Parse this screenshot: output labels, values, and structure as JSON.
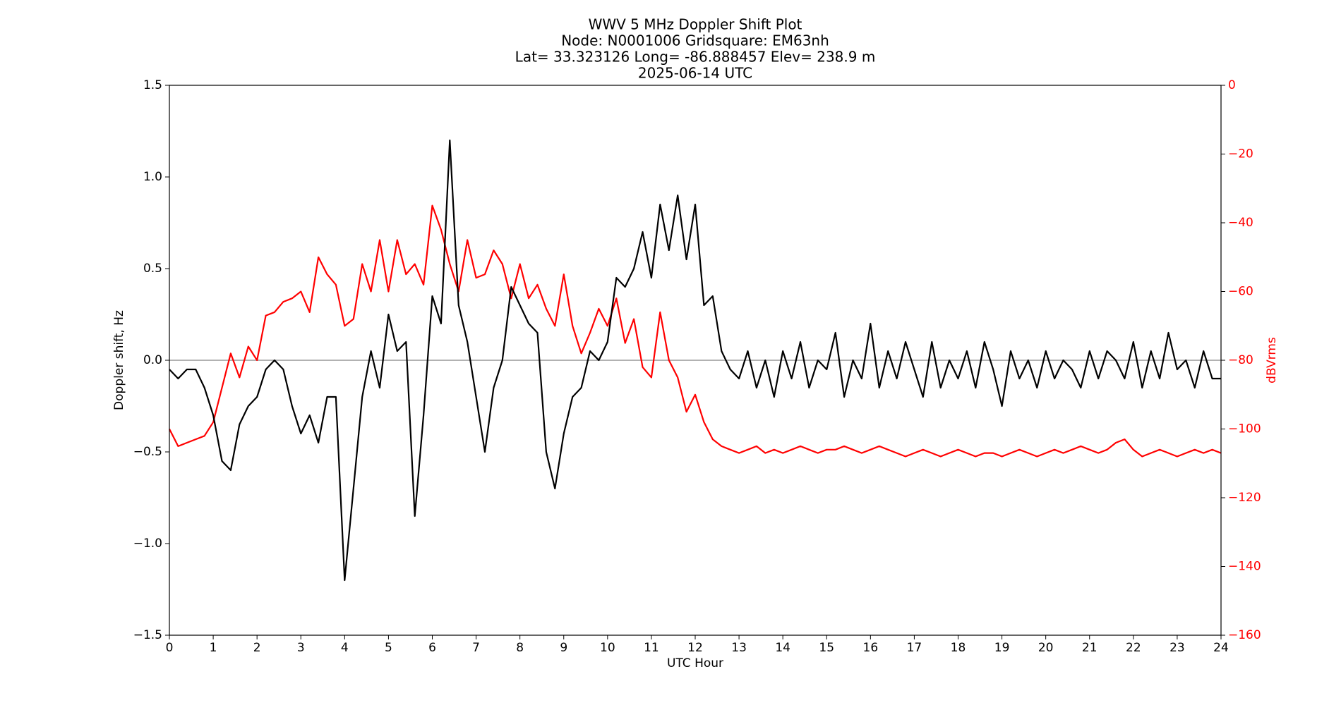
{
  "chart_data": {
    "type": "line",
    "title_lines": [
      "WWV 5 MHz Doppler Shift Plot",
      "Node:  N0001006     Gridsquare:  EM63nh",
      "Lat= 33.323126    Long= -86.888457    Elev= 238.9 m",
      "2025-06-14  UTC"
    ],
    "xlabel": "UTC Hour",
    "ylabel": "Doppler shift, Hz",
    "y2label": "dBVrms",
    "x": [
      0,
      0.2,
      0.4,
      0.6,
      0.8,
      1,
      1.2,
      1.4,
      1.6,
      1.8,
      2,
      2.2,
      2.4,
      2.6,
      2.8,
      3,
      3.2,
      3.4,
      3.6,
      3.8,
      4,
      4.2,
      4.4,
      4.6,
      4.8,
      5,
      5.2,
      5.4,
      5.6,
      5.8,
      6,
      6.2,
      6.4,
      6.6,
      6.8,
      7,
      7.2,
      7.4,
      7.6,
      7.8,
      8,
      8.2,
      8.4,
      8.6,
      8.8,
      9,
      9.2,
      9.4,
      9.6,
      9.8,
      10,
      10.2,
      10.4,
      10.6,
      10.8,
      11,
      11.2,
      11.4,
      11.6,
      11.8,
      12,
      12.2,
      12.4,
      12.6,
      12.8,
      13,
      13.2,
      13.4,
      13.6,
      13.8,
      14,
      14.2,
      14.4,
      14.6,
      14.8,
      15,
      15.2,
      15.4,
      15.6,
      15.8,
      16,
      16.2,
      16.4,
      16.6,
      16.8,
      17,
      17.2,
      17.4,
      17.6,
      17.8,
      18,
      18.2,
      18.4,
      18.6,
      18.8,
      19,
      19.2,
      19.4,
      19.6,
      19.8,
      20,
      20.2,
      20.4,
      20.6,
      20.8,
      21,
      21.2,
      21.4,
      21.6,
      21.8,
      22,
      22.2,
      22.4,
      22.6,
      22.8,
      23,
      23.2,
      23.4,
      23.6,
      23.8,
      24
    ],
    "series": [
      {
        "name": "Doppler shift",
        "color": "#000000",
        "axis": "y",
        "values": [
          -0.05,
          -0.1,
          -0.05,
          -0.05,
          -0.15,
          -0.3,
          -0.55,
          -0.6,
          -0.35,
          -0.25,
          -0.2,
          -0.05,
          0.0,
          -0.05,
          -0.25,
          -0.4,
          -0.3,
          -0.45,
          -0.2,
          -0.2,
          -1.2,
          -0.7,
          -0.2,
          0.05,
          -0.15,
          0.25,
          0.05,
          0.1,
          -0.85,
          -0.3,
          0.35,
          0.2,
          1.2,
          0.3,
          0.1,
          -0.2,
          -0.5,
          -0.15,
          0.0,
          0.4,
          0.3,
          0.2,
          0.15,
          -0.5,
          -0.7,
          -0.4,
          -0.2,
          -0.15,
          0.05,
          0.0,
          0.1,
          0.45,
          0.4,
          0.5,
          0.7,
          0.45,
          0.85,
          0.6,
          0.9,
          0.55,
          0.85,
          0.3,
          0.35,
          0.05,
          -0.05,
          -0.1,
          0.05,
          -0.15,
          0.0,
          -0.2,
          0.05,
          -0.1,
          0.1,
          -0.15,
          0.0,
          -0.05,
          0.15,
          -0.2,
          0.0,
          -0.1,
          0.2,
          -0.15,
          0.05,
          -0.1,
          0.1,
          -0.05,
          -0.2,
          0.1,
          -0.15,
          0.0,
          -0.1,
          0.05,
          -0.15,
          0.1,
          -0.05,
          -0.25,
          0.05,
          -0.1,
          0.0,
          -0.15,
          0.05,
          -0.1,
          0.0,
          -0.05,
          -0.15,
          0.05,
          -0.1,
          0.05,
          0.0,
          -0.1,
          0.1,
          -0.15,
          0.05,
          -0.1,
          0.15,
          -0.05,
          0.0,
          -0.15,
          0.05,
          -0.1,
          -0.1
        ]
      },
      {
        "name": "dBVrms",
        "color": "#ff0000",
        "axis": "y2",
        "values": [
          -100,
          -105,
          -104,
          -103,
          -102,
          -98,
          -88,
          -78,
          -85,
          -76,
          -80,
          -67,
          -66,
          -63,
          -62,
          -60,
          -66,
          -50,
          -55,
          -58,
          -70,
          -68,
          -52,
          -60,
          -45,
          -60,
          -45,
          -55,
          -52,
          -58,
          -35,
          -42,
          -52,
          -60,
          -45,
          -56,
          -55,
          -48,
          -52,
          -62,
          -52,
          -62,
          -58,
          -65,
          -70,
          -55,
          -70,
          -78,
          -72,
          -65,
          -70,
          -62,
          -75,
          -68,
          -82,
          -85,
          -66,
          -80,
          -85,
          -95,
          -90,
          -98,
          -103,
          -105,
          -106,
          -107,
          -106,
          -105,
          -107,
          -106,
          -107,
          -106,
          -105,
          -106,
          -107,
          -106,
          -106,
          -105,
          -106,
          -107,
          -106,
          -105,
          -106,
          -107,
          -108,
          -107,
          -106,
          -107,
          -108,
          -107,
          -106,
          -107,
          -108,
          -107,
          -107,
          -108,
          -107,
          -106,
          -107,
          -108,
          -107,
          -106,
          -107,
          -106,
          -105,
          -106,
          -107,
          -106,
          -104,
          -103,
          -106,
          -108,
          -107,
          -106,
          -107,
          -108,
          -107,
          -106,
          -107,
          -106,
          -107
        ]
      }
    ],
    "xlim": [
      0,
      24
    ],
    "xticks": [
      0,
      1,
      2,
      3,
      4,
      5,
      6,
      7,
      8,
      9,
      10,
      11,
      12,
      13,
      14,
      15,
      16,
      17,
      18,
      19,
      20,
      21,
      22,
      23,
      24
    ],
    "ylim": [
      -1.5,
      1.5
    ],
    "yticks": [
      {
        "value": -1.5,
        "label": "−1.5"
      },
      {
        "value": -1.0,
        "label": "−1.0"
      },
      {
        "value": -0.5,
        "label": "−0.5"
      },
      {
        "value": 0,
        "label": "0.0"
      },
      0.5,
      {
        "value": 1,
        "label": "1.0"
      },
      1.5
    ],
    "y2lim": [
      -160,
      0
    ],
    "y2ticks": [
      {
        "value": -160,
        "label": "−160"
      },
      {
        "value": -140,
        "label": "−140"
      },
      {
        "value": -120,
        "label": "−120"
      },
      {
        "value": -100,
        "label": "−100"
      },
      {
        "value": -80,
        "label": "−80"
      },
      {
        "value": -60,
        "label": "−60"
      },
      {
        "value": -40,
        "label": "−40"
      },
      {
        "value": -20,
        "label": "−20"
      },
      0
    ],
    "hline": 0,
    "hline_color": "#999999"
  }
}
